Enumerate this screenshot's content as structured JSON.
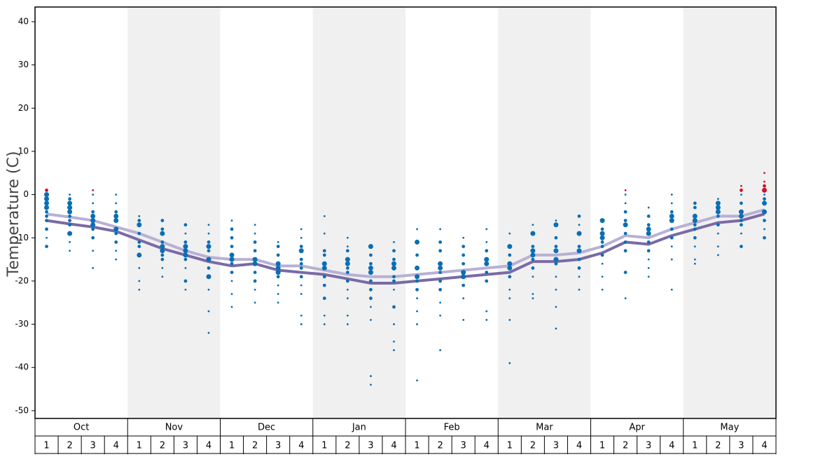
{
  "chart_data": {
    "type": "dot-column",
    "y_label": "Temperature (C)",
    "months": [
      "Oct",
      "Nov",
      "Dec",
      "Jan",
      "Feb",
      "Mar",
      "Apr",
      "May"
    ],
    "weeks": [
      1,
      2,
      3,
      4
    ],
    "ylim": [
      -51.8,
      43.4
    ],
    "yticks": [
      40,
      30,
      20,
      10,
      0,
      -10,
      -20,
      -30,
      -40,
      -50
    ],
    "shaded_months": [
      false,
      true,
      false,
      true,
      false,
      true,
      false,
      true
    ],
    "band_color": "#f0f0f0",
    "series": [
      {
        "color": "#0a6eb4",
        "values": [
          [
            0,
            -1,
            -2,
            -3,
            -4,
            -5,
            -6,
            -8,
            -10,
            -12
          ],
          [
            0,
            -1,
            -2,
            -3,
            -4,
            -5,
            -6,
            -7,
            -9,
            -11,
            -13
          ],
          [
            0,
            -2,
            -4,
            -5,
            -6,
            -7,
            -8,
            -10,
            -13,
            -17
          ],
          [
            0,
            -2,
            -4,
            -5,
            -6,
            -8,
            -9,
            -11,
            -13,
            -15
          ],
          [
            -5,
            -6,
            -7,
            -9,
            -11,
            -12,
            -14,
            -17,
            -20,
            -22
          ],
          [
            -6,
            -8,
            -9,
            -11,
            -12,
            -13,
            -14,
            -15,
            -17,
            -19
          ],
          [
            -7,
            -9,
            -11,
            -12,
            -13,
            -14,
            -15,
            -17,
            -20,
            -22
          ],
          [
            -7,
            -9,
            -11,
            -12,
            -13,
            -15,
            -17,
            -19,
            -22,
            -27,
            -32
          ],
          [
            -6,
            -8,
            -10,
            -12,
            -14,
            -15,
            -16,
            -18,
            -20,
            -23,
            -26
          ],
          [
            -7,
            -9,
            -11,
            -13,
            -15,
            -16,
            -18,
            -20,
            -22,
            -25
          ],
          [
            -11,
            -12,
            -14,
            -16,
            -17,
            -18,
            -19,
            -21,
            -23,
            -25
          ],
          [
            -8,
            -10,
            -12,
            -13,
            -15,
            -16,
            -17,
            -19,
            -21,
            -23,
            -28,
            -30
          ],
          [
            -5,
            -9,
            -13,
            -14,
            -16,
            -17,
            -19,
            -21,
            -24,
            -28,
            -30
          ],
          [
            -10,
            -12,
            -13,
            -15,
            -16,
            -17,
            -18,
            -20,
            -22,
            -24,
            -28,
            -30
          ],
          [
            -12,
            -14,
            -16,
            -17,
            -18,
            -20,
            -22,
            -24,
            -26,
            -29,
            -42,
            -44
          ],
          [
            -11,
            -13,
            -15,
            -16,
            -17,
            -19,
            -20,
            -22,
            -26,
            -30,
            -34,
            -36
          ],
          [
            -8,
            -11,
            -14,
            -17,
            -19,
            -20,
            -22,
            -24,
            -27,
            -30,
            -43
          ],
          [
            -8,
            -11,
            -13,
            -16,
            -17,
            -18,
            -20,
            -22,
            -25,
            -28,
            -36
          ],
          [
            -10,
            -12,
            -14,
            -16,
            -18,
            -19,
            -21,
            -24,
            -29
          ],
          [
            -8,
            -11,
            -13,
            -15,
            -16,
            -18,
            -20,
            -27,
            -29
          ],
          [
            -9,
            -12,
            -14,
            -16,
            -17,
            -19,
            -22,
            -24,
            -29,
            -39
          ],
          [
            -7,
            -9,
            -12,
            -13,
            -14,
            -15,
            -17,
            -19,
            -23,
            -24
          ],
          [
            -6,
            -7,
            -10,
            -12,
            -13,
            -15,
            -16,
            -19,
            -22,
            -26,
            -31
          ],
          [
            -5,
            -7,
            -9,
            -12,
            -13,
            -15,
            -17,
            -19,
            -22
          ],
          [
            -6,
            -8,
            -9,
            -10,
            -11,
            -12,
            -14,
            -16,
            -19,
            -22
          ],
          [
            0,
            -2,
            -4,
            -6,
            -7,
            -9,
            -11,
            -13,
            -18,
            -24
          ],
          [
            -3,
            -5,
            -7,
            -8,
            -9,
            -11,
            -13,
            -15,
            -17,
            -19
          ],
          [
            0,
            -2,
            -4,
            -5,
            -6,
            -8,
            -10,
            -12,
            -15,
            -22
          ],
          [
            -2,
            -3,
            -5,
            -6,
            -7,
            -8,
            -10,
            -12,
            -15,
            -16
          ],
          [
            -1,
            -2,
            -3,
            -4,
            -5,
            -7,
            -9,
            -12,
            -14
          ],
          [
            0,
            -2,
            -4,
            -5,
            -6,
            -7,
            -9,
            -12
          ],
          [
            0,
            -1,
            -2,
            -4,
            -6,
            -8,
            -10
          ]
        ],
        "sizes": [
          [
            3,
            3,
            3,
            3,
            2,
            2,
            2,
            2,
            1,
            2
          ],
          [
            1,
            2,
            3,
            3,
            3,
            2,
            2,
            2,
            3,
            1,
            1
          ],
          [
            1,
            1,
            2,
            3,
            3,
            3,
            2,
            2,
            1,
            1
          ],
          [
            1,
            1,
            2,
            3,
            3,
            3,
            2,
            2,
            1,
            1
          ],
          [
            1,
            2,
            3,
            2,
            2,
            2,
            3,
            1,
            1,
            1
          ],
          [
            2,
            2,
            3,
            2,
            3,
            3,
            2,
            2,
            1,
            1
          ],
          [
            2,
            1,
            2,
            3,
            3,
            3,
            2,
            1,
            2,
            1
          ],
          [
            1,
            1,
            2,
            3,
            2,
            3,
            2,
            3,
            1,
            1,
            1
          ],
          [
            1,
            2,
            2,
            2,
            3,
            3,
            2,
            2,
            1,
            1,
            1
          ],
          [
            1,
            1,
            2,
            2,
            3,
            3,
            2,
            2,
            1,
            1
          ],
          [
            1,
            2,
            2,
            3,
            3,
            3,
            2,
            1,
            1,
            1
          ],
          [
            1,
            1,
            2,
            3,
            2,
            2,
            2,
            2,
            1,
            1,
            1,
            1
          ],
          [
            1,
            1,
            2,
            2,
            3,
            3,
            2,
            2,
            2,
            1,
            1
          ],
          [
            1,
            1,
            2,
            3,
            3,
            2,
            2,
            2,
            1,
            1,
            1,
            1
          ],
          [
            3,
            2,
            2,
            3,
            3,
            2,
            2,
            2,
            1,
            1,
            1,
            1
          ],
          [
            1,
            2,
            2,
            3,
            3,
            2,
            2,
            1,
            2,
            1,
            1,
            1
          ],
          [
            1,
            3,
            2,
            3,
            3,
            2,
            2,
            1,
            1,
            1,
            1
          ],
          [
            1,
            2,
            2,
            3,
            3,
            2,
            2,
            2,
            1,
            1,
            1
          ],
          [
            1,
            2,
            2,
            2,
            3,
            3,
            2,
            1,
            1
          ],
          [
            1,
            1,
            2,
            3,
            3,
            2,
            2,
            1,
            1
          ],
          [
            1,
            3,
            2,
            3,
            3,
            2,
            1,
            1,
            1,
            1
          ],
          [
            1,
            3,
            2,
            3,
            3,
            2,
            2,
            1,
            1,
            1
          ],
          [
            1,
            3,
            2,
            2,
            3,
            3,
            2,
            1,
            1,
            1,
            1
          ],
          [
            2,
            1,
            3,
            2,
            3,
            2,
            2,
            1,
            1
          ],
          [
            3,
            2,
            3,
            3,
            2,
            2,
            2,
            1,
            1,
            1
          ],
          [
            1,
            1,
            2,
            2,
            3,
            2,
            2,
            2,
            2,
            1
          ],
          [
            1,
            2,
            2,
            3,
            3,
            2,
            2,
            1,
            1,
            1
          ],
          [
            1,
            1,
            2,
            3,
            3,
            2,
            2,
            1,
            1,
            1
          ],
          [
            2,
            2,
            3,
            3,
            2,
            2,
            2,
            1,
            1,
            1
          ],
          [
            1,
            3,
            3,
            3,
            2,
            2,
            1,
            1,
            1
          ],
          [
            1,
            2,
            3,
            3,
            2,
            2,
            1,
            2
          ],
          [
            1,
            2,
            3,
            3,
            2,
            1,
            2
          ]
        ]
      },
      {
        "color": "#d0102a",
        "values": [
          [
            1
          ],
          [],
          [
            1
          ],
          [],
          [],
          [],
          [],
          [],
          [],
          [],
          [],
          [],
          [],
          [],
          [],
          [],
          [],
          [],
          [],
          [],
          [],
          [],
          [],
          [],
          [],
          [
            1
          ],
          [],
          [],
          [],
          [],
          [
            2,
            1
          ],
          [
            5,
            3,
            2,
            1
          ]
        ],
        "sizes": [
          [
            2
          ],
          [],
          [
            1
          ],
          [],
          [],
          [],
          [],
          [],
          [],
          [],
          [],
          [],
          [],
          [],
          [],
          [],
          [],
          [],
          [],
          [],
          [],
          [],
          [],
          [],
          [],
          [
            1
          ],
          [],
          [],
          [],
          [],
          [
            1,
            2
          ],
          [
            1,
            1,
            2,
            3
          ]
        ]
      }
    ],
    "lines": [
      {
        "color": "#b8b0d4",
        "values": [
          -4.5,
          -5.2,
          -6,
          -7.5,
          -9,
          -11,
          -13,
          -14.5,
          -15,
          -15,
          -16.5,
          -16.5,
          -17.5,
          -18.5,
          -19,
          -19,
          -18.5,
          -18,
          -17.5,
          -17,
          -16.5,
          -14,
          -14,
          -13.5,
          -12,
          -9.5,
          -10,
          -8,
          -6.5,
          -5,
          -5,
          -3.5
        ]
      },
      {
        "color": "#7a6aa6",
        "values": [
          -6,
          -6.8,
          -7.5,
          -8.5,
          -10.5,
          -12.5,
          -14,
          -15.5,
          -16.5,
          -16,
          -17.5,
          -18,
          -18.5,
          -19.5,
          -20.5,
          -20.5,
          -20,
          -19.5,
          -19,
          -18.5,
          -18,
          -15.5,
          -15.5,
          -15,
          -13.5,
          -11,
          -11.5,
          -9.5,
          -8,
          -6.5,
          -6,
          -4.5
        ]
      }
    ]
  }
}
